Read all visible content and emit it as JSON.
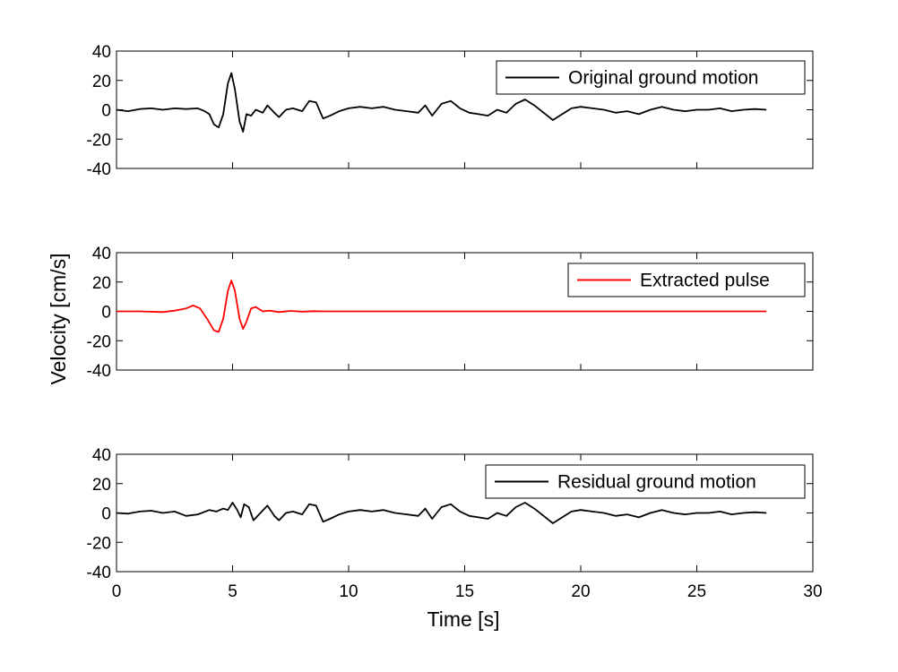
{
  "figure": {
    "xlabel": "Time [s]",
    "ylabel": "Velocity [cm/s]"
  },
  "chart_data": [
    {
      "type": "line",
      "xlim": [
        0,
        30
      ],
      "ylim": [
        -40,
        40
      ],
      "xticks": [
        0,
        5,
        10,
        15,
        20,
        25,
        30
      ],
      "yticks": [
        -40,
        -20,
        0,
        20,
        40
      ],
      "show_xtick_labels": false,
      "grid": false,
      "legend_position": "top-right",
      "series": [
        {
          "name": "Original ground motion",
          "color": "#000000",
          "x": [
            0,
            0.5,
            1,
            1.5,
            2,
            2.5,
            3,
            3.5,
            3.8,
            4.0,
            4.2,
            4.4,
            4.6,
            4.8,
            4.95,
            5.1,
            5.3,
            5.45,
            5.6,
            5.8,
            6.0,
            6.3,
            6.5,
            6.8,
            7.0,
            7.3,
            7.6,
            8.0,
            8.3,
            8.6,
            8.9,
            9.2,
            9.6,
            10,
            10.5,
            11,
            11.5,
            12,
            12.5,
            13,
            13.3,
            13.6,
            14,
            14.4,
            14.8,
            15.2,
            15.6,
            16.0,
            16.4,
            16.8,
            17.2,
            17.6,
            18.0,
            18.4,
            18.8,
            19.2,
            19.6,
            20,
            20.5,
            21,
            21.5,
            22,
            22.5,
            23,
            23.5,
            24,
            24.5,
            25,
            25.5,
            26,
            26.5,
            27,
            27.5,
            28
          ],
          "y": [
            0,
            -1,
            0.5,
            1,
            0,
            1,
            0.5,
            1,
            -1,
            -3,
            -10,
            -12,
            -3,
            18,
            25,
            14,
            -8,
            -15,
            -3,
            -4,
            0,
            -2,
            3,
            -2,
            -5,
            0,
            1,
            -1,
            6,
            5,
            -6,
            -4,
            -1,
            1,
            2,
            1,
            2,
            0,
            -1,
            -2,
            3,
            -4,
            4,
            6,
            1,
            -2,
            -3,
            -4,
            0,
            -2,
            4,
            7,
            3,
            -2,
            -7,
            -3,
            1,
            2,
            1,
            0,
            -2,
            -1,
            -3,
            0,
            2,
            0,
            -1,
            0,
            0,
            1,
            -1,
            0,
            0.5,
            0
          ]
        },
        {
          "name": "",
          "color": "#000000",
          "x": [],
          "y": []
        }
      ]
    },
    {
      "type": "line",
      "xlim": [
        0,
        30
      ],
      "ylim": [
        -40,
        40
      ],
      "xticks": [
        0,
        5,
        10,
        15,
        20,
        25,
        30
      ],
      "yticks": [
        -40,
        -20,
        0,
        20,
        40
      ],
      "show_xtick_labels": false,
      "grid": false,
      "legend_position": "top-right",
      "series": [
        {
          "name": "Extracted pulse",
          "color": "#ff0000",
          "x": [
            0,
            1,
            2,
            2.5,
            3.0,
            3.3,
            3.6,
            3.9,
            4.2,
            4.4,
            4.6,
            4.8,
            4.95,
            5.1,
            5.3,
            5.45,
            5.6,
            5.8,
            6.0,
            6.3,
            6.6,
            7.0,
            7.5,
            8.0,
            8.5,
            9,
            10,
            15,
            20,
            25,
            28
          ],
          "y": [
            0,
            0,
            -0.5,
            0.5,
            2,
            4,
            2,
            -5,
            -13,
            -14,
            -5,
            14,
            21,
            14,
            -5,
            -12,
            -7,
            2,
            3,
            0,
            0.5,
            -0.5,
            0.3,
            -0.2,
            0.1,
            0,
            0,
            0,
            0,
            0,
            0
          ]
        }
      ]
    },
    {
      "type": "line",
      "xlim": [
        0,
        30
      ],
      "ylim": [
        -40,
        40
      ],
      "xticks": [
        0,
        5,
        10,
        15,
        20,
        25,
        30
      ],
      "yticks": [
        -40,
        -20,
        0,
        20,
        40
      ],
      "show_xtick_labels": true,
      "grid": false,
      "legend_position": "top-right",
      "series": [
        {
          "name": "Residual ground motion",
          "color": "#000000",
          "x": [
            0,
            0.5,
            1,
            1.5,
            2,
            2.5,
            3,
            3.5,
            4.0,
            4.3,
            4.6,
            4.8,
            5.0,
            5.2,
            5.35,
            5.5,
            5.7,
            5.9,
            6.2,
            6.5,
            6.8,
            7.0,
            7.3,
            7.6,
            8.0,
            8.3,
            8.6,
            8.9,
            9.2,
            9.6,
            10,
            10.5,
            11,
            11.5,
            12,
            12.5,
            13,
            13.3,
            13.6,
            14,
            14.4,
            14.8,
            15.2,
            15.6,
            16.0,
            16.4,
            16.8,
            17.2,
            17.6,
            18.0,
            18.4,
            18.8,
            19.2,
            19.6,
            20,
            20.5,
            21,
            21.5,
            22,
            22.5,
            23,
            23.5,
            24,
            24.5,
            25,
            25.5,
            26,
            26.5,
            27,
            27.5,
            28
          ],
          "y": [
            0,
            -0.5,
            1,
            1.5,
            0,
            1,
            -2,
            -1,
            2,
            1,
            3,
            2,
            7,
            2,
            -3,
            6,
            4,
            -5,
            0,
            5,
            -2,
            -5,
            0,
            1,
            -1,
            6,
            5,
            -6,
            -4,
            -1,
            1,
            2,
            1,
            2,
            0,
            -1,
            -2,
            3,
            -4,
            4,
            6,
            1,
            -2,
            -3,
            -4,
            0,
            -2,
            4,
            7,
            3,
            -2,
            -7,
            -3,
            1,
            2,
            1,
            0,
            -2,
            -1,
            -3,
            0,
            2,
            0,
            -1,
            0,
            0,
            1,
            -1,
            0,
            0.5,
            0
          ]
        }
      ]
    }
  ]
}
